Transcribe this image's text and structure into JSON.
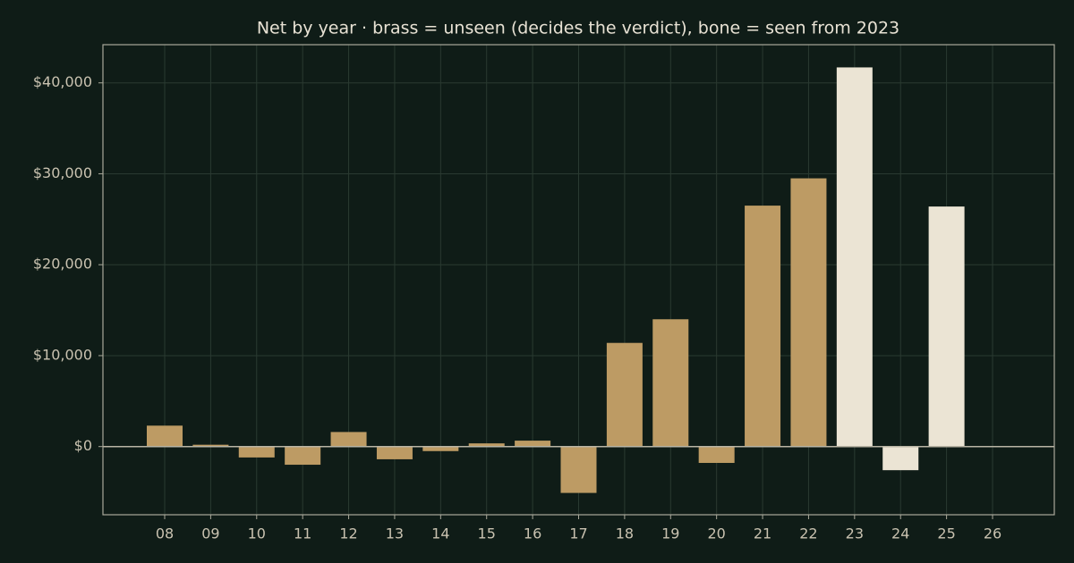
{
  "chart_data": {
    "type": "bar",
    "title": "Net by year  ·  brass = unseen (decides the verdict), bone = seen from 2023",
    "categories": [
      "08",
      "09",
      "10",
      "11",
      "12",
      "13",
      "14",
      "15",
      "16",
      "17",
      "18",
      "19",
      "20",
      "21",
      "22",
      "23",
      "24",
      "25",
      "26"
    ],
    "values": [
      2300,
      200,
      -1200,
      -2000,
      1600,
      -1400,
      -500,
      350,
      650,
      -5100,
      11400,
      14000,
      -1800,
      26500,
      29500,
      41700,
      -2600,
      26400,
      0
    ],
    "colors": [
      "#bd9b64",
      "#bd9b64",
      "#bd9b64",
      "#bd9b64",
      "#bd9b64",
      "#bd9b64",
      "#bd9b64",
      "#bd9b64",
      "#bd9b64",
      "#bd9b64",
      "#bd9b64",
      "#bd9b64",
      "#bd9b64",
      "#bd9b64",
      "#bd9b64",
      "#ebe4d4",
      "#ebe4d4",
      "#ebe4d4",
      "#ebe4d4"
    ],
    "ylim": [
      -7500,
      44200
    ],
    "yticks": [
      {
        "value": 0,
        "label": "$0"
      },
      {
        "value": 10000,
        "label": "$10,000"
      },
      {
        "value": 20000,
        "label": "$20,000"
      },
      {
        "value": 30000,
        "label": "$30,000"
      },
      {
        "value": 40000,
        "label": "$40,000"
      }
    ],
    "grid": true
  }
}
